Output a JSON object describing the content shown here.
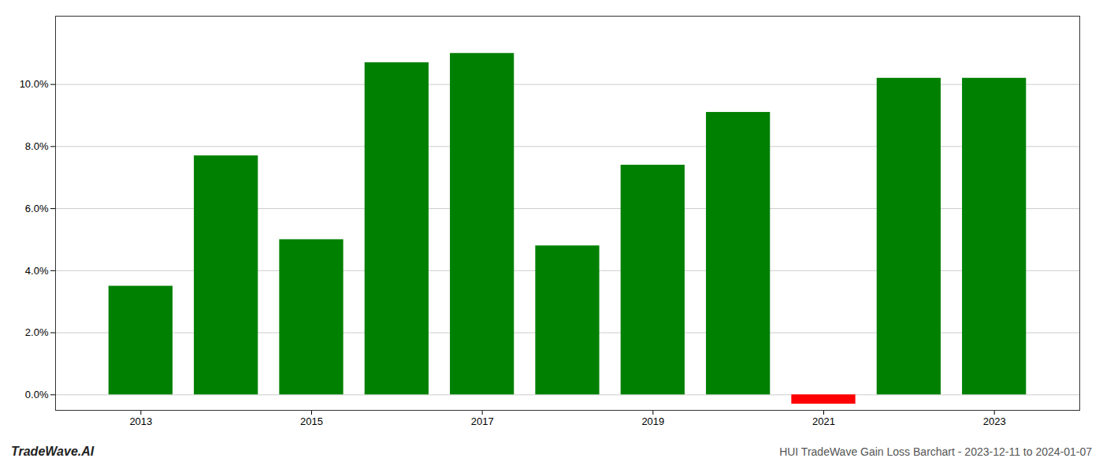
{
  "chart_data": {
    "type": "bar",
    "x": [
      2013,
      2014,
      2015,
      2016,
      2017,
      2018,
      2019,
      2020,
      2021,
      2022,
      2023
    ],
    "values": [
      0.035,
      0.077,
      0.05,
      0.107,
      0.11,
      0.048,
      0.074,
      0.091,
      -0.003,
      0.102,
      0.102
    ],
    "colors": [
      "#008000",
      "#008000",
      "#008000",
      "#008000",
      "#008000",
      "#008000",
      "#008000",
      "#008000",
      "#ff0000",
      "#008000",
      "#008000"
    ],
    "xlim": [
      2012,
      2024
    ],
    "xticks": [
      2013,
      2015,
      2017,
      2019,
      2021,
      2023
    ],
    "ylim": [
      -0.005,
      0.122
    ],
    "yticks": [
      {
        "value": 0.0,
        "label": "0.0%"
      },
      {
        "value": 0.02,
        "label": "2.0%"
      },
      {
        "value": 0.04,
        "label": "4.0%"
      },
      {
        "value": 0.06,
        "label": "6.0%"
      },
      {
        "value": 0.08,
        "label": "8.0%"
      },
      {
        "value": 0.1,
        "label": "10.0%"
      }
    ],
    "grid": true,
    "annotations": [
      "TradeWave.AI",
      "HUI TradeWave Gain Loss Barchart - 2023-12-11 to 2024-01-07"
    ]
  }
}
